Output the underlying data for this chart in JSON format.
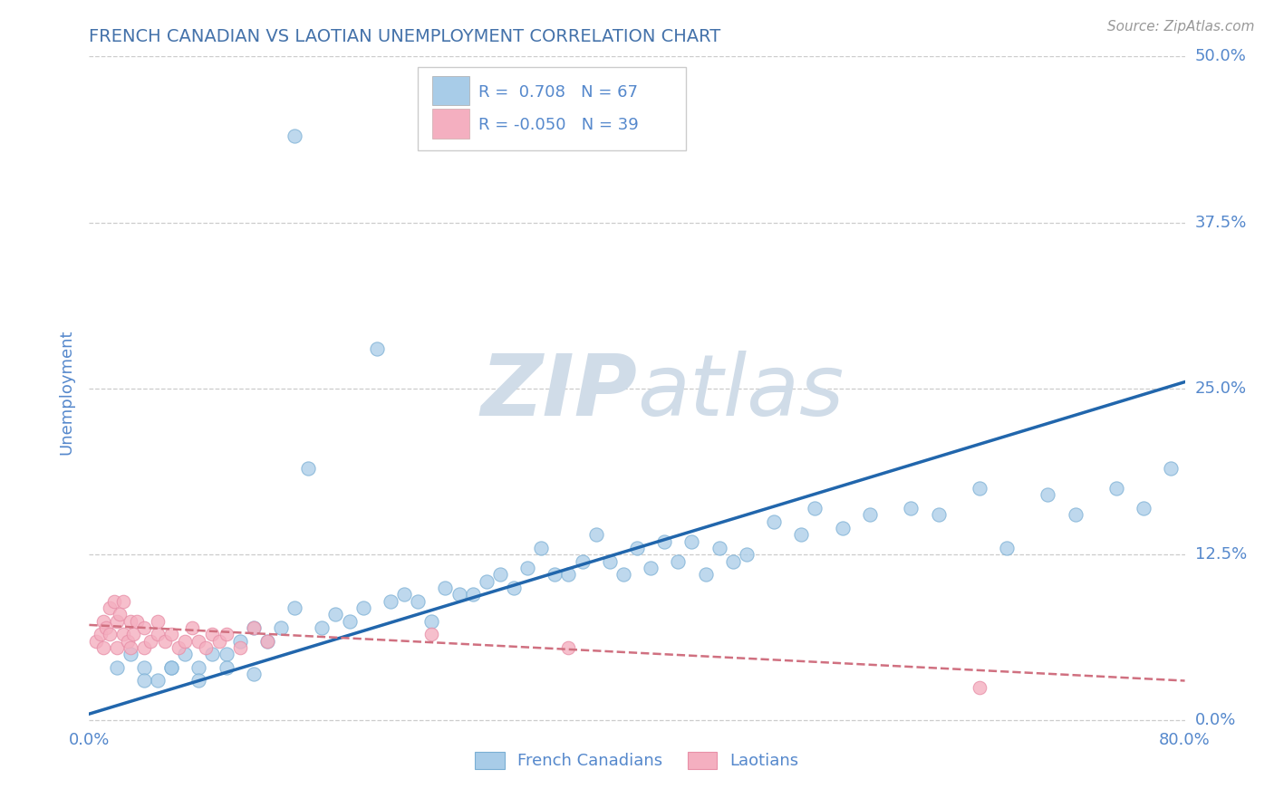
{
  "title": "FRENCH CANADIAN VS LAOTIAN UNEMPLOYMENT CORRELATION CHART",
  "source_text": "Source: ZipAtlas.com",
  "ylabel": "Unemployment",
  "xlim": [
    0.0,
    0.8
  ],
  "ylim": [
    -0.005,
    0.5
  ],
  "yticks": [
    0.0,
    0.125,
    0.25,
    0.375,
    0.5
  ],
  "ytick_labels": [
    "0.0%",
    "12.5%",
    "25.0%",
    "37.5%",
    "50.0%"
  ],
  "xticks": [
    0.0,
    0.1,
    0.2,
    0.3,
    0.4,
    0.5,
    0.6,
    0.7,
    0.8
  ],
  "xtick_show": [
    true,
    false,
    false,
    false,
    false,
    false,
    false,
    false,
    true
  ],
  "xtick_labels_show": [
    "0.0%",
    "",
    "",
    "",
    "",
    "",
    "",
    "",
    "80.0%"
  ],
  "blue_r": 0.708,
  "blue_n": 67,
  "pink_r": -0.05,
  "pink_n": 39,
  "blue_color": "#a8cce8",
  "pink_color": "#f4afc0",
  "blue_edge": "#7aafd4",
  "pink_edge": "#e890a8",
  "line_blue": "#2166ac",
  "line_pink": "#d07080",
  "title_color": "#4472aa",
  "axis_color": "#5588cc",
  "legend_label_blue": "French Canadians",
  "legend_label_pink": "Laotians",
  "watermark_color": "#d0dce8",
  "blue_scatter_x": [
    0.02,
    0.03,
    0.04,
    0.05,
    0.06,
    0.07,
    0.08,
    0.09,
    0.1,
    0.11,
    0.12,
    0.13,
    0.14,
    0.15,
    0.16,
    0.17,
    0.18,
    0.19,
    0.2,
    0.21,
    0.22,
    0.23,
    0.24,
    0.25,
    0.26,
    0.27,
    0.28,
    0.29,
    0.3,
    0.31,
    0.32,
    0.33,
    0.34,
    0.35,
    0.36,
    0.37,
    0.38,
    0.39,
    0.4,
    0.41,
    0.42,
    0.43,
    0.44,
    0.45,
    0.46,
    0.47,
    0.48,
    0.5,
    0.52,
    0.53,
    0.55,
    0.57,
    0.6,
    0.62,
    0.65,
    0.67,
    0.7,
    0.72,
    0.75,
    0.77,
    0.79,
    0.04,
    0.06,
    0.08,
    0.1,
    0.12,
    0.15
  ],
  "blue_scatter_y": [
    0.04,
    0.05,
    0.04,
    0.03,
    0.04,
    0.05,
    0.04,
    0.05,
    0.05,
    0.06,
    0.07,
    0.06,
    0.07,
    0.085,
    0.19,
    0.07,
    0.08,
    0.075,
    0.085,
    0.28,
    0.09,
    0.095,
    0.09,
    0.075,
    0.1,
    0.095,
    0.095,
    0.105,
    0.11,
    0.1,
    0.115,
    0.13,
    0.11,
    0.11,
    0.12,
    0.14,
    0.12,
    0.11,
    0.13,
    0.115,
    0.135,
    0.12,
    0.135,
    0.11,
    0.13,
    0.12,
    0.125,
    0.15,
    0.14,
    0.16,
    0.145,
    0.155,
    0.16,
    0.155,
    0.175,
    0.13,
    0.17,
    0.155,
    0.175,
    0.16,
    0.19,
    0.03,
    0.04,
    0.03,
    0.04,
    0.035,
    0.44
  ],
  "pink_scatter_x": [
    0.005,
    0.008,
    0.01,
    0.01,
    0.012,
    0.015,
    0.015,
    0.018,
    0.02,
    0.02,
    0.022,
    0.025,
    0.025,
    0.028,
    0.03,
    0.03,
    0.032,
    0.035,
    0.04,
    0.04,
    0.045,
    0.05,
    0.05,
    0.055,
    0.06,
    0.065,
    0.07,
    0.075,
    0.08,
    0.085,
    0.09,
    0.095,
    0.1,
    0.11,
    0.12,
    0.13,
    0.25,
    0.35,
    0.65
  ],
  "pink_scatter_y": [
    0.06,
    0.065,
    0.055,
    0.075,
    0.07,
    0.085,
    0.065,
    0.09,
    0.075,
    0.055,
    0.08,
    0.065,
    0.09,
    0.06,
    0.055,
    0.075,
    0.065,
    0.075,
    0.055,
    0.07,
    0.06,
    0.065,
    0.075,
    0.06,
    0.065,
    0.055,
    0.06,
    0.07,
    0.06,
    0.055,
    0.065,
    0.06,
    0.065,
    0.055,
    0.07,
    0.06,
    0.065,
    0.055,
    0.025
  ],
  "blue_line_x": [
    0.0,
    0.8
  ],
  "blue_line_y": [
    0.005,
    0.255
  ],
  "pink_line_x": [
    0.0,
    0.8
  ],
  "pink_line_y": [
    0.072,
    0.03
  ]
}
